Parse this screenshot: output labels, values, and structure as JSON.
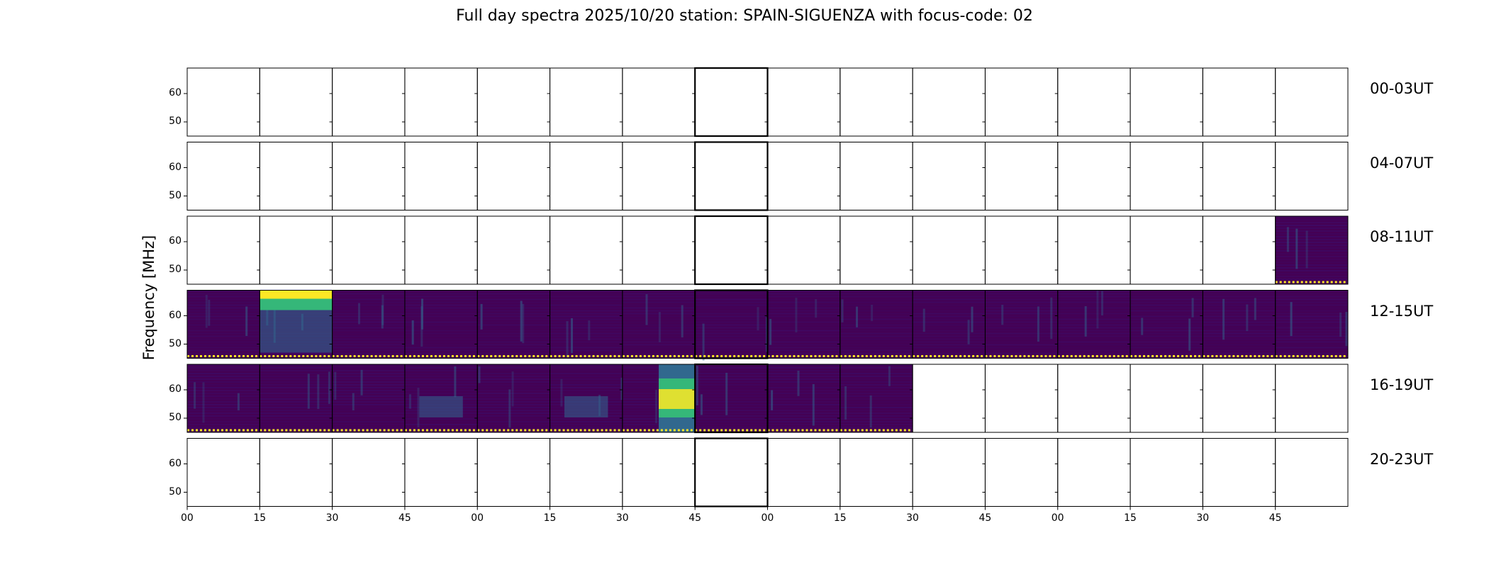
{
  "chart_data": {
    "type": "heatmap",
    "title": "Full day spectra 2025/10/20 station: SPAIN-SIGUENZA with focus-code: 02",
    "ylabel": "Frequency [MHz]",
    "ylim": [
      45,
      69
    ],
    "yticks": [
      "60",
      "50"
    ],
    "xticks": [
      "00",
      "15",
      "30",
      "45",
      "00",
      "15",
      "30",
      "45",
      "00",
      "15",
      "30",
      "45",
      "00",
      "15",
      "30",
      "45"
    ],
    "colormap": "viridis",
    "rows": [
      {
        "label": "00-03UT",
        "filled_panels": []
      },
      {
        "label": "04-07UT",
        "filled_panels": []
      },
      {
        "label": "08-11UT",
        "filled_panels": [
          15
        ]
      },
      {
        "label": "12-15UT",
        "filled_panels": [
          0,
          1,
          2,
          3,
          4,
          5,
          6,
          7,
          8,
          9,
          10,
          11,
          12,
          13,
          14,
          15
        ]
      },
      {
        "label": "16-19UT",
        "filled_panels": [
          0,
          1,
          2,
          3,
          4,
          5,
          6,
          7,
          8,
          9
        ]
      },
      {
        "label": "20-23UT",
        "filled_panels": []
      }
    ],
    "colors": {
      "low": "#3b0f6f",
      "base": "#440154",
      "mid": "#31688e",
      "high": "#35b779",
      "peak": "#fde725",
      "frame": "#000000"
    }
  }
}
